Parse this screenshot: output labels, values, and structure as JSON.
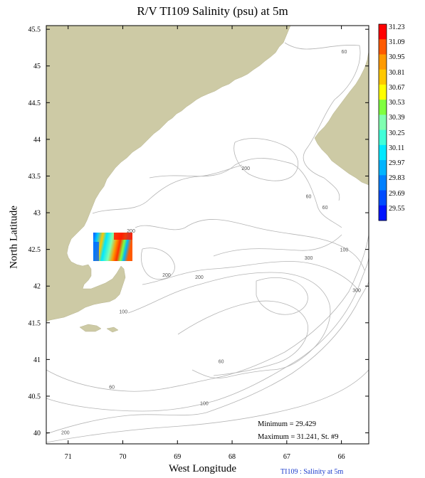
{
  "title": "R/V TI109 Salinity (psu) at 5m",
  "xlabel": "West Longitude",
  "ylabel": "North Latitude",
  "caption": "TI109 : Salinity at 5m",
  "stats": {
    "minimum": "Minimum = 29.429",
    "maximum": "Maximum = 31.241, St. #9"
  },
  "axes": {
    "x_ticks": [
      "71",
      "70",
      "69",
      "68",
      "67",
      "66"
    ],
    "y_ticks": [
      "45.5",
      "45",
      "44.5",
      "44",
      "43.5",
      "43",
      "42.5",
      "42",
      "41.5",
      "41",
      "40.5",
      "40"
    ],
    "x_range": [
      71.4,
      65.5
    ],
    "y_range": [
      39.85,
      45.55
    ]
  },
  "colorbar": {
    "labels": [
      "31.23",
      "31.09",
      "30.95",
      "30.81",
      "30.67",
      "30.53",
      "30.39",
      "30.25",
      "30.11",
      "29.97",
      "29.83",
      "29.69",
      "29.55"
    ],
    "colors": [
      "#ff0000",
      "#ff5a00",
      "#ff9a00",
      "#ffc800",
      "#ffff00",
      "#80ff40",
      "#80ffb0",
      "#40ffd8",
      "#00e8ff",
      "#00b4ff",
      "#0080ff",
      "#004cff",
      "#0014ff"
    ]
  },
  "contour_labels": [
    {
      "text": "60",
      "lon": 65.95,
      "lat": 45.17
    },
    {
      "text": "200",
      "lon": 67.75,
      "lat": 43.58
    },
    {
      "text": "60",
      "lon": 66.6,
      "lat": 43.2
    },
    {
      "text": "60",
      "lon": 66.3,
      "lat": 43.05
    },
    {
      "text": "200",
      "lon": 69.85,
      "lat": 42.73
    },
    {
      "text": "100",
      "lon": 65.95,
      "lat": 42.47
    },
    {
      "text": "300",
      "lon": 66.6,
      "lat": 42.36
    },
    {
      "text": "200",
      "lon": 69.2,
      "lat": 42.13
    },
    {
      "text": "200",
      "lon": 68.6,
      "lat": 42.1
    },
    {
      "text": "300",
      "lon": 65.72,
      "lat": 41.92
    },
    {
      "text": "100",
      "lon": 69.99,
      "lat": 41.63
    },
    {
      "text": "60",
      "lon": 68.2,
      "lat": 40.95
    },
    {
      "text": "60",
      "lon": 70.2,
      "lat": 40.6
    },
    {
      "text": "100",
      "lon": 68.51,
      "lat": 40.38
    },
    {
      "text": "200",
      "lon": 71.05,
      "lat": 39.98
    }
  ],
  "colors": {
    "land": "#cdcaa5",
    "contour": "#b4b4b4",
    "frame": "#000000"
  }
}
